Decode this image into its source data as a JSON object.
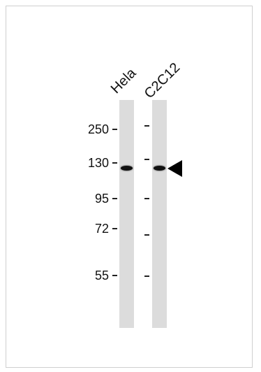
{
  "lanes": [
    {
      "label": "Hela"
    },
    {
      "label": "C2C12"
    }
  ],
  "markers": [
    {
      "label": "250"
    },
    {
      "label": "130"
    },
    {
      "label": "95"
    },
    {
      "label": "72"
    },
    {
      "label": "55"
    }
  ]
}
